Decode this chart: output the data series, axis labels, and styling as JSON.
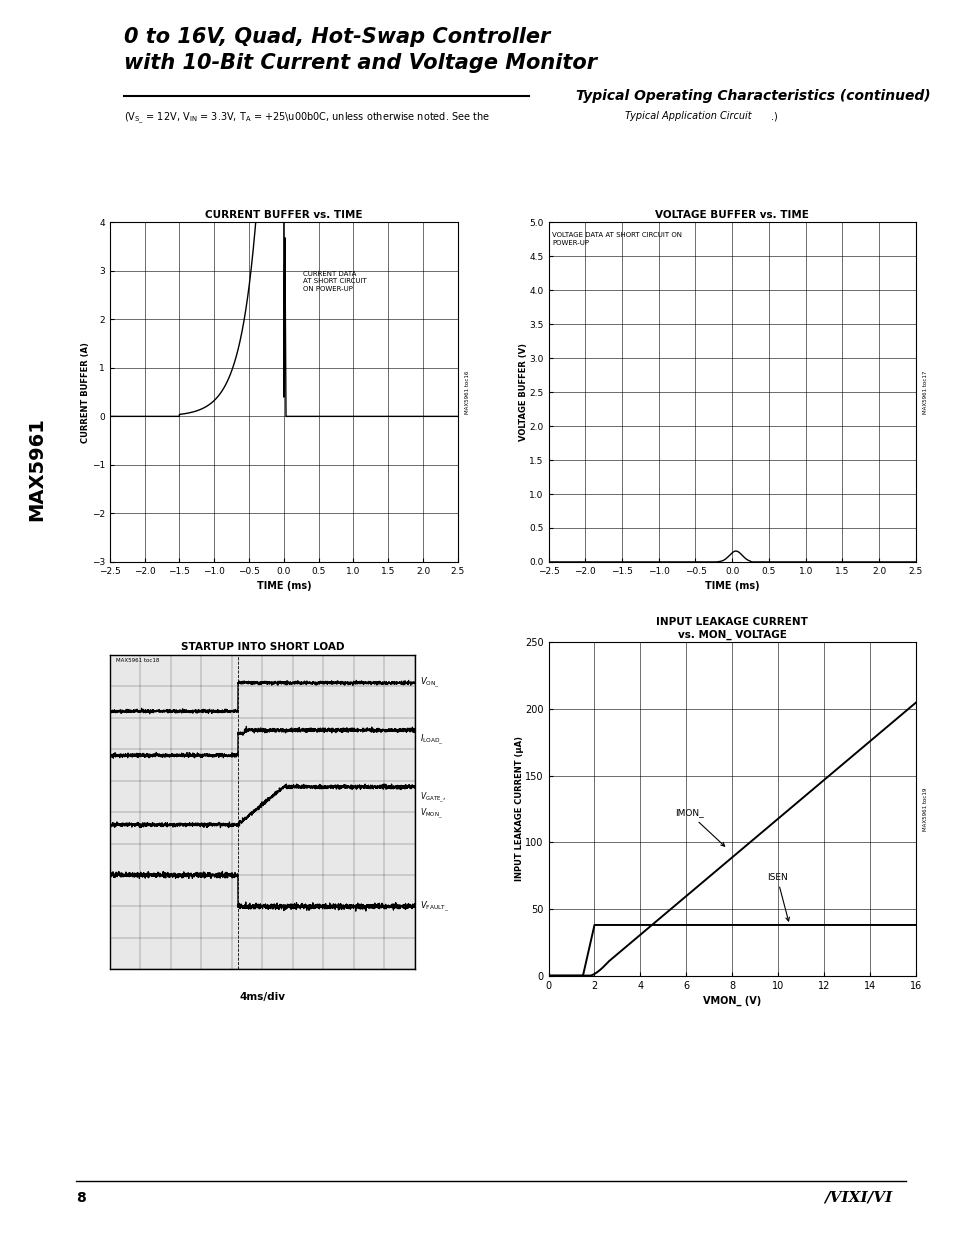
{
  "page_title_line1": "0 to 16V, Quad, Hot-Swap Controller",
  "page_title_line2": "with 10-Bit Current and Voltage Monitor",
  "section_title": "Typical Operating Characteristics (continued)",
  "sidebar_text": "MAX5961",
  "footer_page": "8",
  "chart1": {
    "title": "CURRENT BUFFER vs. TIME",
    "xlabel": "TIME (ms)",
    "ylabel": "CURRENT BUFFER (A)",
    "xlim": [
      -2.5,
      2.5
    ],
    "ylim": [
      -3,
      4
    ],
    "xticks": [
      -2.5,
      -2.0,
      -1.5,
      -1.0,
      -0.5,
      0,
      0.5,
      1.0,
      1.5,
      2.0,
      2.5
    ],
    "yticks": [
      -3,
      -2,
      -1,
      0,
      1,
      2,
      3,
      4
    ],
    "annotation": "CURRENT DATA\nAT SHORT CIRCUIT\nON POWER-UP",
    "watermark": "MAX5961 toc16"
  },
  "chart2": {
    "title": "VOLTAGE BUFFER vs. TIME",
    "xlabel": "TIME (ms)",
    "ylabel": "VOLTAGE BUFFER (V)",
    "xlim": [
      -2.5,
      2.5
    ],
    "ylim": [
      0,
      5.0
    ],
    "xticks": [
      -2.5,
      -2.0,
      -1.5,
      -1.0,
      -0.5,
      0,
      0.5,
      1.0,
      1.5,
      2.0,
      2.5
    ],
    "yticks": [
      0,
      0.5,
      1.0,
      1.5,
      2.0,
      2.5,
      3.0,
      3.5,
      4.0,
      4.5,
      5.0
    ],
    "annotation": "VOLTAGE DATA AT SHORT CIRCUIT ON\nPOWER-UP",
    "watermark": "MAX5961 toc17"
  },
  "chart3": {
    "title": "STARTUP INTO SHORT LOAD",
    "xlabel": "4ms/div",
    "watermark": "MAX5961 toc18"
  },
  "chart4": {
    "title_line1": "INPUT LEAKAGE CURRENT",
    "title_line2": "vs. MON_ VOLTAGE",
    "xlabel": "VMON_ (V)",
    "ylabel": "INPUT LEAKAGE CURRENT (μA)",
    "xlim": [
      0,
      16
    ],
    "ylim": [
      0,
      250
    ],
    "xticks": [
      0,
      2,
      4,
      6,
      8,
      10,
      12,
      14,
      16
    ],
    "yticks": [
      0,
      50,
      100,
      150,
      200,
      250
    ],
    "label_imon": "IMON_",
    "label_isen": "ISEN",
    "watermark": "MAX5961 toc19"
  },
  "bg_color": "#ffffff",
  "grid_color": "#000000",
  "curve_color": "#000000"
}
